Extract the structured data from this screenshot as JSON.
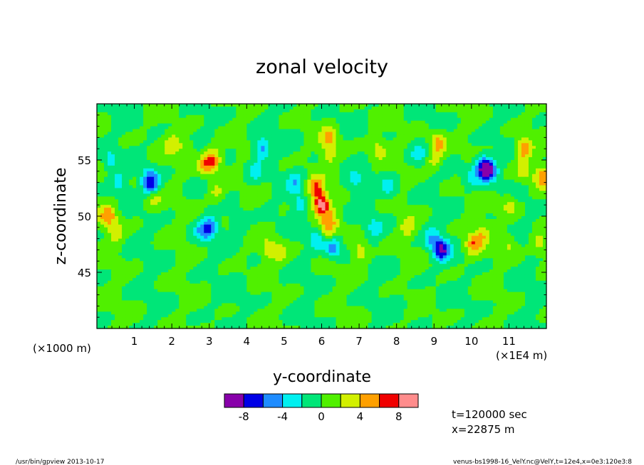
{
  "chart_data": {
    "type": "heatmap",
    "title": "zonal velocity",
    "xlabel": "y-coordinate",
    "ylabel": "z-coordinate",
    "x_unit": "(×1E4 m)",
    "y_unit": "(×1000 m)",
    "xlim": [
      0,
      12
    ],
    "ylim": [
      40,
      60
    ],
    "x_ticks": [
      1,
      2,
      3,
      4,
      5,
      6,
      7,
      8,
      9,
      10,
      11
    ],
    "y_ticks": [
      45,
      50,
      55
    ],
    "colorbar": {
      "levels": [
        -10,
        -8,
        -6,
        -4,
        -2,
        0,
        2,
        4,
        6,
        8,
        10
      ],
      "tick_labels": [
        "-8",
        "-4",
        "0",
        "4",
        "8"
      ],
      "tick_values": [
        -8,
        -4,
        0,
        4,
        8
      ],
      "colors": [
        "#8800aa",
        "#0000e6",
        "#1e8cff",
        "#00f0f0",
        "#00e678",
        "#50f000",
        "#d2f000",
        "#ffa000",
        "#f00000",
        "#ff8c8c"
      ]
    },
    "features": [
      {
        "y": 6.0,
        "z": 51.0,
        "value": 9
      },
      {
        "y": 5.85,
        "z": 52.5,
        "value": 6
      },
      {
        "y": 6.15,
        "z": 48.5,
        "value": 4
      },
      {
        "y": 6.3,
        "z": 47.2,
        "value": -6
      },
      {
        "y": 5.9,
        "z": 48.0,
        "value": -4
      },
      {
        "y": 6.25,
        "z": 49.5,
        "value": 3
      },
      {
        "y": 7.05,
        "z": 46.8,
        "value": 4
      },
      {
        "y": 9.2,
        "z": 47.0,
        "value": -8
      },
      {
        "y": 8.95,
        "z": 48.0,
        "value": -4
      },
      {
        "y": 9.0,
        "z": 55.0,
        "value": 3
      },
      {
        "y": 9.1,
        "z": 56.5,
        "value": 5
      },
      {
        "y": 10.3,
        "z": 54.5,
        "value": -6
      },
      {
        "y": 10.45,
        "z": 54.0,
        "value": -8
      },
      {
        "y": 10.0,
        "z": 53.5,
        "value": -3
      },
      {
        "y": 10.05,
        "z": 47.5,
        "value": 5
      },
      {
        "y": 10.3,
        "z": 48.5,
        "value": 3
      },
      {
        "y": 11.4,
        "z": 56.0,
        "value": 6
      },
      {
        "y": 11.4,
        "z": 54.0,
        "value": 3
      },
      {
        "y": 11.9,
        "z": 53.5,
        "value": 5
      },
      {
        "y": 11.8,
        "z": 47.5,
        "value": 3
      },
      {
        "y": 4.4,
        "z": 56.0,
        "value": -5
      },
      {
        "y": 4.2,
        "z": 54.0,
        "value": -3
      },
      {
        "y": 2.9,
        "z": 54.5,
        "value": 4
      },
      {
        "y": 3.1,
        "z": 55.0,
        "value": 6
      },
      {
        "y": 3.2,
        "z": 52.0,
        "value": 3
      },
      {
        "y": 2.0,
        "z": 56.5,
        "value": 3
      },
      {
        "y": 2.4,
        "z": 56.0,
        "value": 2.5
      },
      {
        "y": 0.3,
        "z": 50.0,
        "value": 5
      },
      {
        "y": 0.5,
        "z": 48.5,
        "value": 3
      },
      {
        "y": 0.35,
        "z": 55.0,
        "value": -3
      },
      {
        "y": 0.6,
        "z": 53.0,
        "value": -3
      },
      {
        "y": 1.4,
        "z": 53.5,
        "value": -3
      },
      {
        "y": 1.45,
        "z": 52.8,
        "value": -6
      },
      {
        "y": 1.5,
        "z": 51.5,
        "value": 3
      },
      {
        "y": 2.8,
        "z": 48.5,
        "value": -3
      },
      {
        "y": 3.0,
        "z": 49.0,
        "value": -5
      },
      {
        "y": 3.8,
        "z": 49.5,
        "value": -2.5
      },
      {
        "y": 4.6,
        "z": 47.0,
        "value": 3
      },
      {
        "y": 4.9,
        "z": 46.8,
        "value": 3
      },
      {
        "y": 5.3,
        "z": 53.0,
        "value": -3
      },
      {
        "y": 5.4,
        "z": 51.0,
        "value": -3
      },
      {
        "y": 6.2,
        "z": 57.0,
        "value": 4
      },
      {
        "y": 6.2,
        "z": 55.5,
        "value": 3
      },
      {
        "y": 7.5,
        "z": 56.0,
        "value": 3
      },
      {
        "y": 7.8,
        "z": 52.5,
        "value": -3
      },
      {
        "y": 8.3,
        "z": 49.0,
        "value": 3
      },
      {
        "y": 7.4,
        "z": 49.0,
        "value": -2.5
      },
      {
        "y": 6.9,
        "z": 53.0,
        "value": -2.5
      },
      {
        "y": 8.6,
        "z": 55.5,
        "value": -2.5
      },
      {
        "y": 11.0,
        "z": 51.0,
        "value": 3
      },
      {
        "y": 11.0,
        "z": 47.5,
        "value": 2.5
      },
      {
        "y": 3.8,
        "z": 43.0,
        "value": -1
      },
      {
        "y": 8.0,
        "z": 42.0,
        "value": -1
      }
    ]
  },
  "info": {
    "time": "t=120000 sec",
    "xpos": "x=22875 m"
  },
  "footer": {
    "left": "/usr/bin/gpview   2013-10-17",
    "right": "venus-bs1998-16_VelY.nc@VelY,t=12e4,x=0e3:120e3:8"
  }
}
